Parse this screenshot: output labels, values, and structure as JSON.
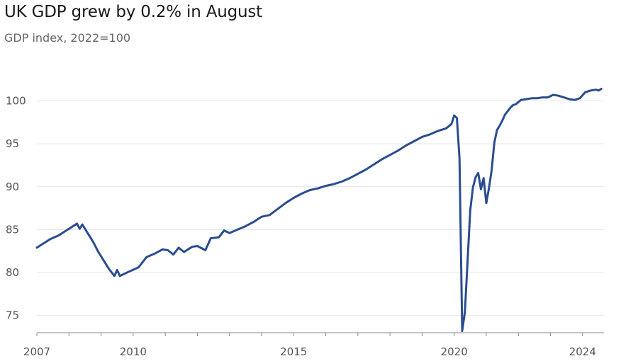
{
  "header": {
    "title": "UK GDP grew by 0.2% in August",
    "subtitle": "GDP index, 2022=100"
  },
  "colors": {
    "line": "#2a4d8f",
    "grid": "#e4e4e4",
    "axis": "#555555"
  },
  "chart_data": {
    "type": "line",
    "title": "UK GDP grew by 0.2% in August",
    "subtitle": "GDP index, 2022=100",
    "xlabel": "",
    "ylabel": "",
    "x_ticks": [
      "2007",
      "2010",
      "2015",
      "2020",
      "2024"
    ],
    "y_ticks": [
      75,
      80,
      85,
      90,
      95,
      100
    ],
    "ylim": [
      73,
      103.5
    ],
    "xlim": [
      "2007-01",
      "2024-09"
    ],
    "grid": true,
    "series": [
      {
        "name": "",
        "x": [
          "2007-01",
          "2007-03",
          "2007-06",
          "2007-09",
          "2007-12",
          "2008-02",
          "2008-04",
          "2008-05",
          "2008-06",
          "2008-08",
          "2008-10",
          "2008-12",
          "2009-02",
          "2009-04",
          "2009-06",
          "2009-07",
          "2009-08",
          "2009-10",
          "2009-12",
          "2010-03",
          "2010-06",
          "2010-09",
          "2010-12",
          "2011-02",
          "2011-04",
          "2011-06",
          "2011-08",
          "2011-11",
          "2012-01",
          "2012-04",
          "2012-06",
          "2012-09",
          "2012-11",
          "2013-01",
          "2013-04",
          "2013-07",
          "2013-10",
          "2014-01",
          "2014-04",
          "2014-07",
          "2014-10",
          "2015-01",
          "2015-04",
          "2015-07",
          "2015-10",
          "2016-01",
          "2016-04",
          "2016-07",
          "2016-10",
          "2017-01",
          "2017-04",
          "2017-07",
          "2017-10",
          "2018-01",
          "2018-04",
          "2018-07",
          "2018-10",
          "2019-01",
          "2019-04",
          "2019-07",
          "2019-10",
          "2019-12",
          "2020-01",
          "2020-02",
          "2020-03",
          "2020-04",
          "2020-05",
          "2020-06",
          "2020-07",
          "2020-08",
          "2020-09",
          "2020-10",
          "2020-11",
          "2020-12",
          "2021-01",
          "2021-02",
          "2021-03",
          "2021-04",
          "2021-05",
          "2021-06",
          "2021-07",
          "2021-08",
          "2021-09",
          "2021-10",
          "2021-11",
          "2021-12",
          "2022-02",
          "2022-04",
          "2022-06",
          "2022-08",
          "2022-10",
          "2022-12",
          "2023-02",
          "2023-04",
          "2023-06",
          "2023-08",
          "2023-10",
          "2023-12",
          "2024-02",
          "2024-04",
          "2024-06",
          "2024-07",
          "2024-08"
        ],
        "values": [
          82.9,
          83.3,
          83.9,
          84.3,
          84.9,
          85.3,
          85.7,
          85.1,
          85.6,
          84.6,
          83.6,
          82.4,
          81.4,
          80.4,
          79.6,
          80.3,
          79.6,
          79.9,
          80.2,
          80.6,
          81.8,
          82.2,
          82.7,
          82.6,
          82.1,
          82.9,
          82.4,
          83.0,
          83.1,
          82.6,
          84.0,
          84.1,
          84.9,
          84.6,
          85.0,
          85.4,
          85.9,
          86.5,
          86.7,
          87.4,
          88.1,
          88.7,
          89.2,
          89.6,
          89.8,
          90.1,
          90.3,
          90.6,
          91.0,
          91.5,
          92.0,
          92.6,
          93.2,
          93.7,
          94.2,
          94.8,
          95.3,
          95.8,
          96.1,
          96.5,
          96.8,
          97.3,
          98.3,
          98.0,
          93.3,
          73.2,
          75.4,
          81.2,
          87.2,
          89.9,
          91.1,
          91.6,
          89.7,
          91.0,
          88.1,
          89.8,
          91.9,
          95.1,
          96.6,
          97.1,
          97.7,
          98.4,
          98.8,
          99.2,
          99.5,
          99.6,
          100.1,
          100.2,
          100.3,
          100.3,
          100.4,
          100.4,
          100.7,
          100.6,
          100.4,
          100.2,
          100.1,
          100.3,
          101.0,
          101.2,
          101.3,
          101.2,
          101.4
        ]
      }
    ]
  }
}
